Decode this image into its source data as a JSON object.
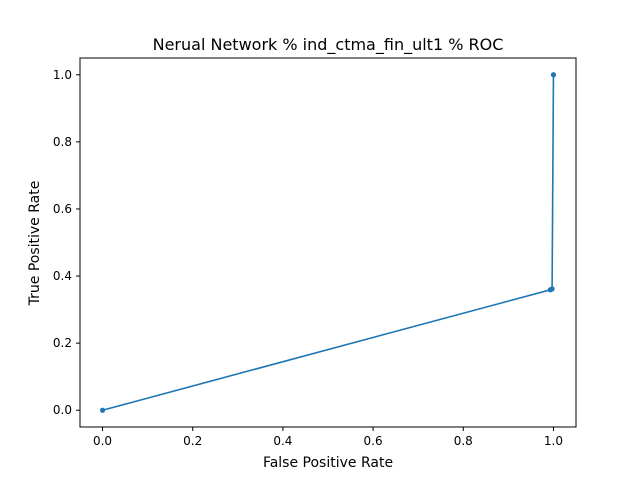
{
  "chart_data": {
    "type": "line",
    "title": "Nerual Network % ind_ctma_fin_ult1 % ROC",
    "xlabel": "False Positive Rate",
    "ylabel": "True Positive Rate",
    "xlim": [
      -0.05,
      1.05
    ],
    "ylim": [
      -0.05,
      1.05
    ],
    "xticks": [
      0.0,
      0.2,
      0.4,
      0.6,
      0.8,
      1.0
    ],
    "yticks": [
      0.0,
      0.2,
      0.4,
      0.6,
      0.8,
      1.0
    ],
    "xtick_labels": [
      "0.0",
      "0.2",
      "0.4",
      "0.6",
      "0.8",
      "1.0"
    ],
    "ytick_labels": [
      "0.0",
      "0.2",
      "0.4",
      "0.6",
      "0.8",
      "1.0"
    ],
    "grid": false,
    "series": [
      {
        "color": "#1f77b4",
        "marker": "circle",
        "x": [
          0.0,
          0.993,
          0.995,
          0.997,
          1.0
        ],
        "y": [
          0.0,
          0.359,
          0.36,
          0.362,
          1.0
        ]
      }
    ]
  }
}
